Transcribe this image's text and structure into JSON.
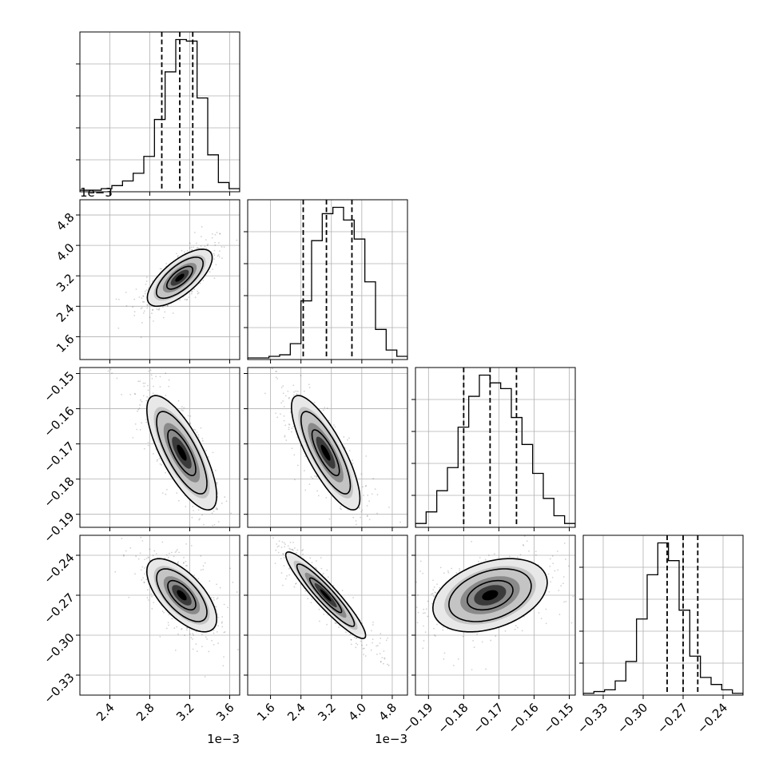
{
  "chart_data": {
    "type": "corner",
    "description_free": true,
    "n_params": 4,
    "grid": true,
    "histograms": [
      {
        "param": 0,
        "range": [
          2.1,
          3.7
        ],
        "counts": [
          1,
          1,
          2,
          4,
          7,
          12,
          23,
          47,
          78,
          99,
          98,
          61,
          24,
          6,
          2
        ],
        "quantiles": [
          2.92,
          3.1,
          3.23
        ]
      },
      {
        "param": 1,
        "range": [
          1.0,
          5.2
        ],
        "counts": [
          1,
          1,
          2,
          3,
          10,
          37,
          75,
          92,
          96,
          88,
          76,
          49,
          19,
          6,
          2
        ],
        "quantiles": [
          2.46,
          3.07,
          3.74
        ]
      },
      {
        "param": 2,
        "range": [
          -0.1937,
          -0.1483
        ],
        "counts": [
          2,
          8,
          19,
          31,
          52,
          68,
          79,
          75,
          72,
          57,
          43,
          28,
          15,
          6,
          2
        ],
        "quantiles": [
          -0.18,
          -0.1725,
          -0.165
        ]
      },
      {
        "param": 3,
        "range": [
          -0.345,
          -0.225
        ],
        "counts": [
          1,
          2,
          3,
          8,
          19,
          43,
          68,
          86,
          76,
          48,
          22,
          10,
          6,
          3,
          1
        ],
        "quantiles": [
          -0.282,
          -0.27,
          -0.259
        ]
      }
    ],
    "pairs": [
      {
        "x": 0,
        "y": 1,
        "center": [
          3.1,
          3.15
        ],
        "corr": 0.7,
        "spread": [
          0.13,
          0.3
        ]
      },
      {
        "x": 0,
        "y": 2,
        "center": [
          3.12,
          -0.1725
        ],
        "corr": -0.75,
        "spread": [
          0.14,
          0.0065
        ]
      },
      {
        "x": 1,
        "y": 2,
        "center": [
          3.05,
          -0.1725
        ],
        "corr": -0.8,
        "spread": [
          0.36,
          0.0065
        ]
      },
      {
        "x": 0,
        "y": 3,
        "center": [
          3.12,
          -0.27
        ],
        "corr": -0.65,
        "spread": [
          0.14,
          0.011
        ]
      },
      {
        "x": 1,
        "y": 3,
        "center": [
          3.05,
          -0.27
        ],
        "corr": -0.93,
        "spread": [
          0.42,
          0.013
        ]
      },
      {
        "x": 2,
        "y": 3,
        "center": [
          -0.1725,
          -0.27
        ],
        "corr": 0.35,
        "spread": [
          0.0065,
          0.011
        ]
      }
    ],
    "axes": [
      {
        "param": 0,
        "range": [
          2.1,
          3.7
        ],
        "ticks": [
          2.4,
          2.8,
          3.2,
          3.6
        ],
        "tick_labels": [
          "2.4",
          "2.8",
          "3.2",
          "3.6"
        ],
        "offset_label": "1e−3"
      },
      {
        "param": 1,
        "range": [
          1.0,
          5.2
        ],
        "ticks": [
          1.6,
          2.4,
          3.2,
          4.0,
          4.8
        ],
        "tick_labels": [
          "1.6",
          "2.4",
          "3.2",
          "4.0",
          "4.8"
        ],
        "offset_label": "1e−3"
      },
      {
        "param": 2,
        "range": [
          -0.1937,
          -0.1483
        ],
        "ticks": [
          -0.19,
          -0.18,
          -0.17,
          -0.16,
          -0.15
        ],
        "tick_labels": [
          "−0.19",
          "−0.18",
          "−0.17",
          "−0.16",
          "−0.15"
        ],
        "offset_label": ""
      },
      {
        "param": 3,
        "range": [
          -0.345,
          -0.225
        ],
        "ticks": [
          -0.33,
          -0.3,
          -0.27,
          -0.24
        ],
        "tick_labels": [
          "−0.33",
          "−0.30",
          "−0.27",
          "−0.24"
        ],
        "offset_label": ""
      }
    ]
  }
}
